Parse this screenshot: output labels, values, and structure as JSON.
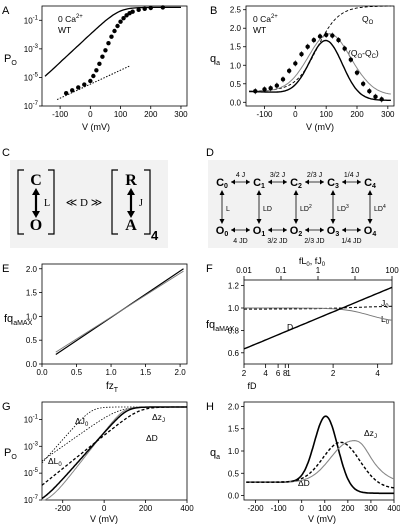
{
  "chart_data": [
    {
      "panel": "A",
      "type": "scatter",
      "annotation": [
        "0 Ca2+",
        "WT"
      ],
      "xlabel": "V (mV)",
      "ylabel": "PO",
      "xlim": [
        -160,
        320
      ],
      "ylim_log10": [
        -7,
        0
      ],
      "yscale": "log",
      "xticks": [
        -100,
        0,
        100,
        200,
        300
      ],
      "yticks": [
        "10-1",
        "10-3",
        "10-5",
        "10-7"
      ],
      "series": [
        {
          "role": "data points",
          "x": [
            -80,
            -60,
            -40,
            -20,
            0,
            10,
            20,
            30,
            40,
            50,
            60,
            70,
            80,
            90,
            100,
            110,
            120,
            130,
            140,
            160,
            180,
            200,
            240
          ],
          "y_log10": [
            -6.1,
            -5.9,
            -5.7,
            -5.5,
            -5.25,
            -4.9,
            -4.5,
            -4.05,
            -3.55,
            -3.1,
            -2.6,
            -2.15,
            -1.75,
            -1.4,
            -1.1,
            -0.85,
            -0.65,
            -0.5,
            -0.4,
            -0.27,
            -0.2,
            -0.14,
            -0.1
          ]
        },
        {
          "role": "fit",
          "style": "solid"
        },
        {
          "role": "limiting slope",
          "style": "dotted",
          "x": [
            -110,
            130
          ],
          "y_log10": [
            -6.55,
            -4.2
          ]
        }
      ]
    },
    {
      "panel": "B",
      "type": "scatter",
      "annotation": [
        "0 Ca2+",
        "WT"
      ],
      "xlabel": "V (mV)",
      "ylabel": "qa",
      "xlim": [
        -160,
        320
      ],
      "ylim": [
        -0.1,
        2.6
      ],
      "xticks": [
        -100,
        0,
        100,
        200,
        300
      ],
      "yticks": [
        0.0,
        0.5,
        1.0,
        1.5,
        2.0,
        2.5
      ],
      "series": [
        {
          "role": "data points",
          "x": [
            -130,
            -100,
            -80,
            -60,
            -40,
            -20,
            0,
            20,
            40,
            60,
            80,
            100,
            120,
            140,
            160,
            180,
            200,
            220,
            240,
            260,
            280
          ],
          "y": [
            0.3,
            0.35,
            0.38,
            0.45,
            0.62,
            0.85,
            1.05,
            1.3,
            1.5,
            1.68,
            1.78,
            1.82,
            1.8,
            1.68,
            1.45,
            1.15,
            0.8,
            0.5,
            0.3,
            0.15,
            0.08
          ]
        },
        {
          "name": "QO",
          "style": "dashed"
        },
        {
          "name": "(QO-QC)",
          "style": "solid gray"
        },
        {
          "role": "fit",
          "style": "solid black"
        }
      ]
    },
    {
      "panel": "E",
      "type": "line",
      "xlabel": "fzT",
      "ylabel": "fqaMAX",
      "xlim": [
        0,
        2.1
      ],
      "ylim": [
        0,
        2.1
      ],
      "xticks": [
        0.0,
        0.5,
        1.0,
        1.5,
        2.0
      ],
      "yticks": [
        0.0,
        0.5,
        1.0,
        1.5,
        2.0
      ],
      "series": [
        {
          "style": "solid black",
          "x": [
            0.2,
            2.05
          ],
          "y": [
            0.2,
            2.0
          ]
        },
        {
          "style": "solid gray",
          "x": [
            0.2,
            2.05
          ],
          "y": [
            0.25,
            1.95
          ]
        }
      ]
    },
    {
      "panel": "F",
      "type": "line",
      "xscale": "log",
      "xlabel_bottom": "fD",
      "xlabel_top": "fL0, fJ0",
      "ylabel": "fqaMAX",
      "xlim_bottom": [
        0.5,
        5
      ],
      "xlim_top": [
        0.01,
        100
      ],
      "ylim": [
        0.5,
        1.25
      ],
      "xticks_top": [
        "0.01",
        "0.1",
        "1",
        "10",
        "100"
      ],
      "xticks_bottom": [
        "2",
        "4",
        "6",
        "8",
        "1",
        "2",
        "4"
      ],
      "yticks": [
        0.6,
        0.8,
        1.0,
        1.2
      ],
      "series": [
        {
          "name": "J0",
          "style": "dashed",
          "x_top": [
            0.01,
            1,
            100
          ],
          "y": [
            0.99,
            1.0,
            1.02
          ]
        },
        {
          "name": "L0",
          "style": "gray",
          "x_top": [
            0.01,
            1,
            10,
            100
          ],
          "y": [
            1.0,
            1.0,
            0.97,
            0.88
          ]
        },
        {
          "name": "D",
          "style": "solid black",
          "x_bottom": [
            0.5,
            1,
            2,
            5
          ],
          "y": [
            0.58,
            0.8,
            0.98,
            1.18
          ]
        }
      ]
    },
    {
      "panel": "G",
      "type": "line",
      "xlabel": "V (mV)",
      "ylabel": "PO",
      "yscale": "log",
      "xlim": [
        -300,
        400
      ],
      "ylim_log10": [
        -7,
        0.3
      ],
      "xticks": [
        -200,
        0,
        200,
        400
      ],
      "yticks": [
        "10-1",
        "10-3",
        "10-5",
        "10-7"
      ],
      "series": [
        {
          "name": "ΔJ0",
          "style": "dotted"
        },
        {
          "name": "ΔL0",
          "style": "dotted"
        },
        {
          "name": "ΔzJ",
          "style": "gray"
        },
        {
          "name": "ΔD",
          "style": "dashed"
        },
        {
          "role": "control",
          "style": "solid black"
        }
      ]
    },
    {
      "panel": "H",
      "type": "line",
      "xlabel": "V (mV)",
      "ylabel": "qa",
      "xlim": [
        -250,
        400
      ],
      "ylim": [
        -0.1,
        2.1
      ],
      "xticks": [
        -200,
        -100,
        0,
        100,
        200,
        300,
        400
      ],
      "yticks": [
        0.0,
        0.5,
        1.0,
        1.5,
        2.0
      ],
      "series": [
        {
          "role": "control",
          "style": "solid black"
        },
        {
          "name": "ΔzJ",
          "style": "gray"
        },
        {
          "name": "ΔD",
          "style": "dashed"
        }
      ]
    }
  ],
  "panels": {
    "A": {
      "label": "A",
      "ann1": "0 Ca",
      "ann_sup": "2+",
      "ann2": "WT",
      "ylab": "P",
      "ylab_sub": "O",
      "xlab": "V (mV)"
    },
    "B": {
      "label": "B",
      "ann1": "0 Ca",
      "ann_sup": "2+",
      "ann2": "WT",
      "ylab": "q",
      "ylab_sub": "a",
      "xlab": "V (mV)",
      "s1": "Q",
      "s1_sub": "O",
      "s2a": "(Q",
      "s2a_sub": "O",
      "s2b": "-Q",
      "s2b_sub": "C",
      "s2c": ")"
    },
    "C": {
      "label": "C",
      "top_left": "C",
      "bottom_left": "O",
      "L": "L",
      "D": "≪ D ≫",
      "top_right": "R",
      "bottom_right": "A",
      "J": "J",
      "subscript": "4"
    },
    "D": {
      "label": "D",
      "top_states": [
        "C",
        "C",
        "C",
        "C",
        "C"
      ],
      "bottom_states": [
        "O",
        "O",
        "O",
        "O",
        "O"
      ],
      "state_subs": [
        "0",
        "1",
        "2",
        "3",
        "4"
      ],
      "top_rates": [
        "4 J",
        "3/2 J",
        "2/3 J",
        "1/4 J"
      ],
      "bottom_rates": [
        "4 JD",
        "3/2 JD",
        "2/3 JD",
        "1/4 JD"
      ],
      "vert_rates": [
        "L",
        "LD",
        "LD2",
        "LD3",
        "LD4"
      ]
    },
    "E": {
      "label": "E",
      "ylab": "fq",
      "ylab_sub": "aMAX",
      "xlab": "fz",
      "xlab_sub": "T"
    },
    "F": {
      "label": "F",
      "ylab": "fq",
      "ylab_sub": "aMAX",
      "xlab_bottom": "fD",
      "xlab_top": "fL",
      "xlab_top_sub": "0",
      "xlab_top2": ", fJ",
      "xlab_top2_sub": "0",
      "s_J": "J",
      "s_J_sub": "0",
      "s_L": "L",
      "s_L_sub": "0",
      "s_D": "D"
    },
    "G": {
      "label": "G",
      "ylab": "P",
      "ylab_sub": "O",
      "xlab": "V (mV)",
      "s_J0": "ΔJ",
      "s_J0_sub": "0",
      "s_L0": "ΔL",
      "s_L0_sub": "0",
      "s_zJ": "Δz",
      "s_zJ_sub": "J",
      "s_D": "ΔD"
    },
    "H": {
      "label": "H",
      "ylab": "q",
      "ylab_sub": "a",
      "xlab": "V (mV)",
      "s_zJ": "Δz",
      "s_zJ_sub": "J",
      "s_D": "ΔD"
    }
  }
}
